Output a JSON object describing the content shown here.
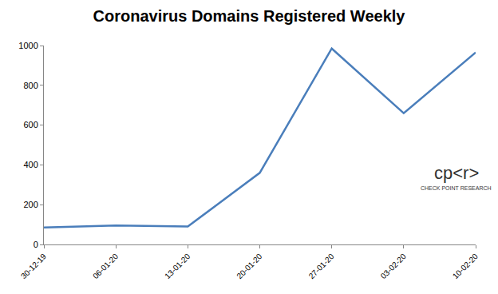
{
  "chart_data": {
    "type": "line",
    "title": "Coronavirus Domains Registered Weekly",
    "categories": [
      "30-12-19",
      "06-01-20",
      "13-01-20",
      "20-01-20",
      "27-01-20",
      "03-02-20",
      "10-02-20"
    ],
    "values": [
      85,
      95,
      90,
      360,
      985,
      660,
      965
    ],
    "color": "#4a7ebb",
    "ylim": [
      0,
      1000
    ],
    "yticks": [
      0,
      200,
      400,
      600,
      800,
      1000
    ],
    "grid": false,
    "annotations": [
      "cp<r>",
      "CHECK POINT RESEARCH"
    ]
  }
}
